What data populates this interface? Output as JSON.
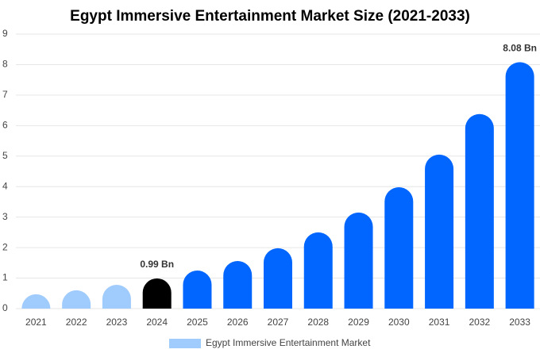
{
  "chart_data": {
    "type": "bar",
    "title": "Egypt Immersive Entertainment Market Size (2021-2033)",
    "categories": [
      "2021",
      "2022",
      "2023",
      "2024",
      "2025",
      "2026",
      "2027",
      "2028",
      "2029",
      "2030",
      "2031",
      "2032",
      "2033"
    ],
    "series": [
      {
        "name": "Egypt Immersive Entertainment Market",
        "color": "#a0cbfd",
        "colors": [
          "#a0cbfd",
          "#a0cbfd",
          "#a0cbfd",
          "#000000",
          "#0066ff",
          "#0066ff",
          "#0066ff",
          "#0066ff",
          "#0066ff",
          "#0066ff",
          "#0066ff",
          "#0066ff",
          "#0066ff"
        ],
        "values": [
          0.47,
          0.6,
          0.78,
          0.99,
          1.25,
          1.56,
          1.98,
          2.5,
          3.15,
          3.98,
          5.05,
          6.38,
          8.08
        ],
        "value_labels": [
          null,
          null,
          null,
          "0.99 Bn",
          null,
          null,
          null,
          null,
          null,
          null,
          null,
          null,
          "8.08 Bn"
        ]
      }
    ],
    "ylim": [
      0,
      9
    ],
    "yticks": [
      0,
      1,
      2,
      3,
      4,
      5,
      6,
      7,
      8,
      9
    ],
    "grid": true
  }
}
